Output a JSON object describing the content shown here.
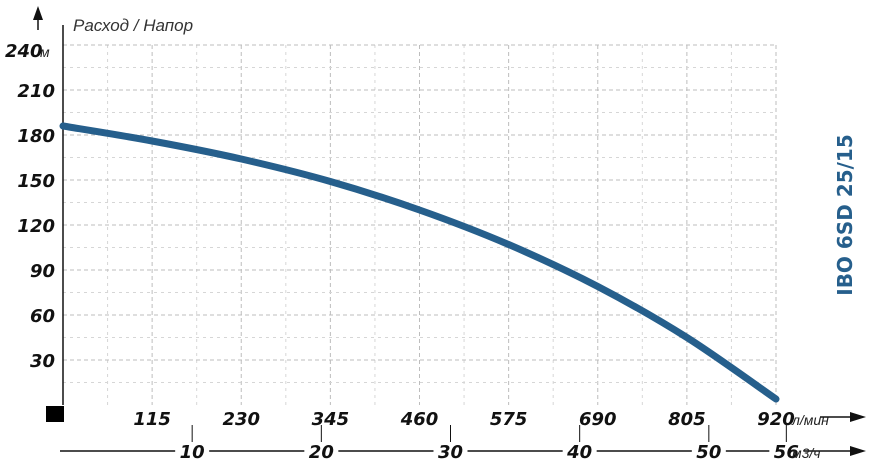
{
  "colors": {
    "curve": "#265f8c",
    "model_label": "#265f8c",
    "grid_major": "#bdbdbd",
    "grid_minor": "#d6d6d6",
    "axis": "#111111"
  },
  "legend_marker_icon": "black-square-icon",
  "chart_data": {
    "type": "line",
    "ylabel": "Расход / Напор",
    "model": "IBO 6SD 25/15",
    "y": {
      "ticks": [
        "30",
        "60",
        "90",
        "120",
        "150",
        "180",
        "210",
        "240"
      ],
      "top_label": "240",
      "unit": "м",
      "ylim": [
        0,
        240
      ]
    },
    "x_lmin": {
      "ticks": [
        "115",
        "230",
        "345",
        "460",
        "575",
        "690",
        "805",
        "920"
      ],
      "unit": "л/мин",
      "xlim": [
        0,
        920
      ]
    },
    "x_m3h": {
      "ticks": [
        "10",
        "20",
        "30",
        "40",
        "50",
        "56"
      ],
      "values": [
        10,
        20,
        30,
        40,
        50,
        56
      ],
      "unit": "м3/ч"
    },
    "grid": true,
    "series": [
      {
        "x": [
          0,
          115,
          230,
          345,
          460,
          575,
          690,
          805,
          920
        ],
        "y": [
          186,
          176,
          164,
          149,
          130,
          107,
          79,
          45,
          4
        ]
      }
    ]
  }
}
